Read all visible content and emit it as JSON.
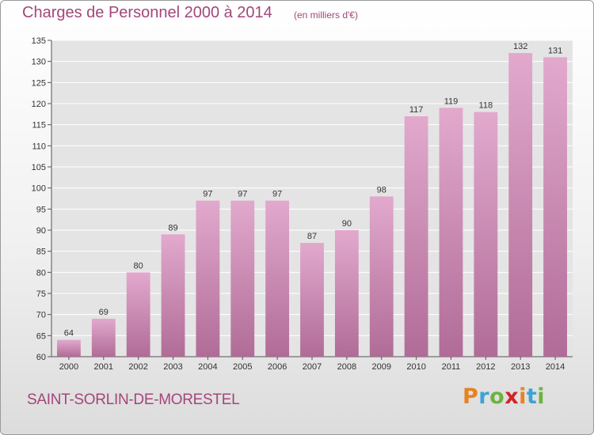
{
  "header": {
    "title": "Charges de Personnel 2000 à 2014",
    "subtitle": "(en milliers d'€)"
  },
  "footer": {
    "city": "SAINT-SORLIN-DE-MORESTEL",
    "logo_letters": [
      {
        "char": "P",
        "color": "#e8821e"
      },
      {
        "char": "r",
        "color": "#3ba3d8"
      },
      {
        "char": "o",
        "color": "#6db33f"
      },
      {
        "char": "x",
        "color": "#d2232a"
      },
      {
        "char": "i",
        "color": "#e8821e"
      },
      {
        "char": "t",
        "color": "#3ba3d8"
      },
      {
        "char": "i",
        "color": "#6db33f"
      }
    ]
  },
  "chart_data": {
    "type": "bar",
    "title": "Charges de Personnel 2000 à 2014",
    "subtitle": "(en milliers d'€)",
    "categories": [
      "2000",
      "2001",
      "2002",
      "2003",
      "2004",
      "2005",
      "2006",
      "2007",
      "2008",
      "2009",
      "2010",
      "2011",
      "2012",
      "2013",
      "2014"
    ],
    "values": [
      64,
      69,
      80,
      89,
      97,
      97,
      97,
      87,
      90,
      98,
      117,
      119,
      118,
      132,
      131
    ],
    "ylim": [
      60,
      135
    ],
    "yticks": [
      60,
      65,
      70,
      75,
      80,
      85,
      90,
      95,
      100,
      105,
      110,
      115,
      120,
      125,
      130,
      135
    ],
    "grid": true,
    "bar_color_top": "#e2a9cd",
    "bar_color_bottom": "#b06c97"
  }
}
